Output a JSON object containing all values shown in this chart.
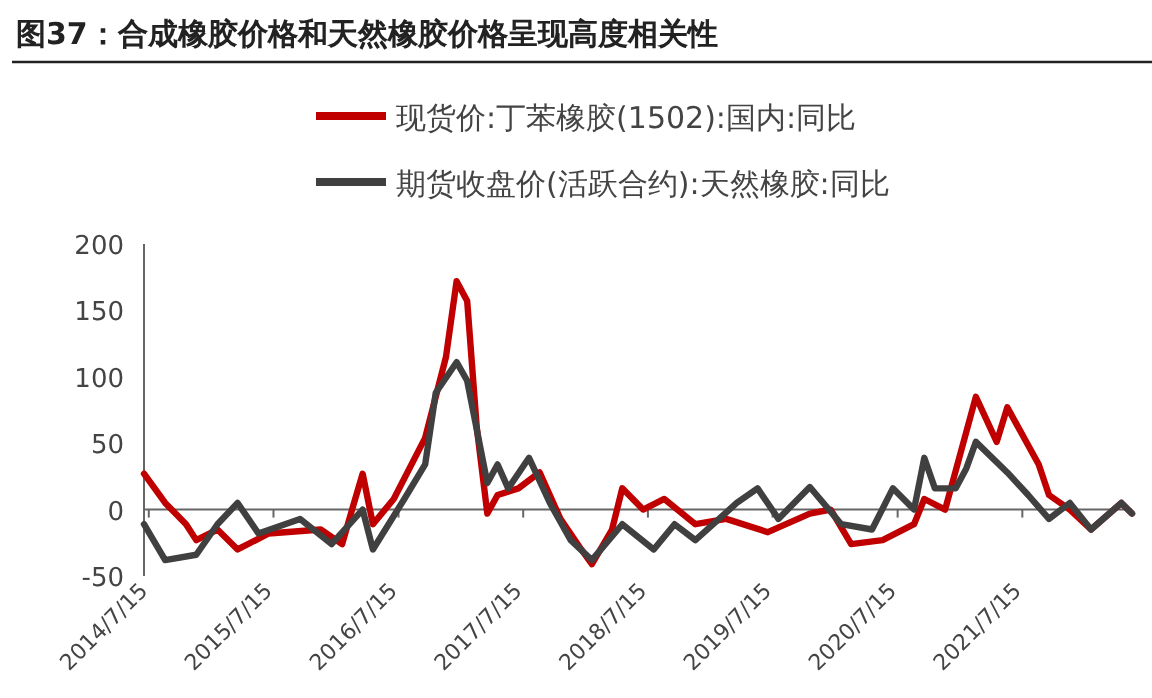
{
  "chart_data": {
    "type": "line",
    "title": "图37：合成橡胶价格和天然橡胶价格呈现高度相关性",
    "legend": "top",
    "xlim": [
      "2014-07-01",
      "2022-06-01"
    ],
    "xticks": [
      {
        "value": "2014-07-15",
        "label": "2014/7/15"
      },
      {
        "value": "2015-07-15",
        "label": "2015/7/15"
      },
      {
        "value": "2016-07-15",
        "label": "2016/7/15"
      },
      {
        "value": "2017-07-15",
        "label": "2017/7/15"
      },
      {
        "value": "2018-07-15",
        "label": "2018/7/15"
      },
      {
        "value": "2019-07-15",
        "label": "2019/7/15"
      },
      {
        "value": "2020-07-15",
        "label": "2020/7/15"
      },
      {
        "value": "2021-07-15",
        "label": "2021/7/15"
      }
    ],
    "ylim": [
      -50,
      200
    ],
    "yticks": [
      -50,
      0,
      50,
      100,
      150,
      200
    ],
    "series": [
      {
        "name": "现货价:丁苯橡胶(1502):国内:同比",
        "color": "#c00000",
        "x": [
          "2014-07",
          "2014-09",
          "2014-11",
          "2014-12",
          "2015-02",
          "2015-04",
          "2015-07",
          "2015-12",
          "2016-02",
          "2016-03",
          "2016-04",
          "2016-05",
          "2016-07",
          "2016-10",
          "2016-12",
          "2017-01",
          "2017-02",
          "2017-03",
          "2017-04",
          "2017-05",
          "2017-07",
          "2017-09",
          "2017-11",
          "2018-01",
          "2018-02",
          "2018-04",
          "2018-05",
          "2018-07",
          "2018-09",
          "2018-12",
          "2019-03",
          "2019-07",
          "2019-11",
          "2020-01",
          "2020-03",
          "2020-06",
          "2020-09",
          "2020-10",
          "2020-12",
          "2021-03",
          "2021-05",
          "2021-06",
          "2021-09",
          "2021-10",
          "2021-12",
          "2022-02",
          "2022-05",
          "2022-06"
        ],
        "values": [
          27,
          5,
          -11,
          -23,
          -15,
          -30,
          -18,
          -15,
          -26,
          0,
          27,
          -11,
          8,
          54,
          115,
          172,
          157,
          62,
          -3,
          11,
          16,
          28,
          -7,
          -30,
          -41,
          -15,
          16,
          0,
          8,
          -11,
          -7,
          -17,
          -3,
          0,
          -26,
          -23,
          -11,
          8,
          0,
          85,
          51,
          77,
          34,
          11,
          0,
          -15,
          5,
          -3
        ]
      },
      {
        "name": "期货收盘价(活跃合约):天然橡胶:同比",
        "color": "#404040",
        "x": [
          "2014-07",
          "2014-09",
          "2014-12",
          "2015-02",
          "2015-04",
          "2015-06",
          "2015-10",
          "2016-01",
          "2016-04",
          "2016-05",
          "2016-08",
          "2016-10",
          "2016-11",
          "2017-01",
          "2017-02",
          "2017-04",
          "2017-05",
          "2017-06",
          "2017-08",
          "2017-10",
          "2017-12",
          "2018-02",
          "2018-05",
          "2018-08",
          "2018-10",
          "2018-12",
          "2019-04",
          "2019-06",
          "2019-08",
          "2019-11",
          "2020-02",
          "2020-05",
          "2020-07",
          "2020-09",
          "2020-10",
          "2020-11",
          "2021-01",
          "2021-02",
          "2021-03",
          "2021-06",
          "2021-08",
          "2021-10",
          "2021-12",
          "2022-02",
          "2022-05",
          "2022-06"
        ],
        "values": [
          -11,
          -38,
          -34,
          -11,
          5,
          -18,
          -7,
          -26,
          0,
          -30,
          8,
          34,
          88,
          111,
          97,
          20,
          34,
          16,
          39,
          5,
          -23,
          -38,
          -11,
          -30,
          -11,
          -23,
          5,
          16,
          -7,
          17,
          -11,
          -15,
          16,
          0,
          39,
          16,
          16,
          31,
          51,
          28,
          11,
          -7,
          5,
          -15,
          5,
          -3
        ]
      }
    ]
  }
}
